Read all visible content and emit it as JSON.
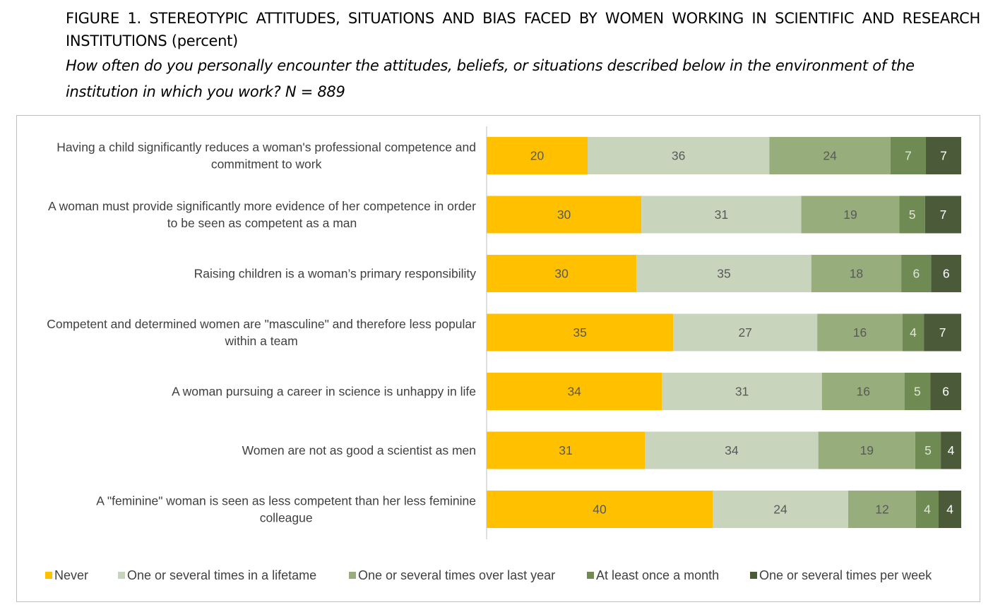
{
  "figure": {
    "title": "FIGURE 1. STEREOTYPIC ATTITUDES, SITUATIONS AND BIAS FACED BY WOMEN WORKING IN SCIENTIFIC AND RESEARCH INSTITUTIONS (percent)",
    "subtitle": "How often do you personally encounter the attitudes, beliefs, or situations described below in the environment of the institution in which you work? N = 889"
  },
  "chart_data": {
    "type": "bar",
    "orientation": "horizontal",
    "stacked": true,
    "categories": [
      [
        "Having a child significantly reduces a woman's professional competence and",
        "commitment to work"
      ],
      [
        "A woman must provide significantly more evidence of her competence in order",
        "to be seen as competent as a man"
      ],
      [
        "Raising children is a woman’s primary responsibility"
      ],
      [
        "Competent and determined women are \"masculine\" and therefore less popular",
        "within a team"
      ],
      [
        "A woman pursuing a career in science is unhappy in life"
      ],
      [
        "Women are not as good a scientist as men"
      ],
      [
        "A \"feminine\" woman is seen as less competent than her less feminine",
        "colleague"
      ]
    ],
    "series": [
      {
        "name": "Never",
        "color": "#FFC000",
        "label_color": "#595959",
        "values": [
          20,
          30,
          30,
          35,
          34,
          31,
          40
        ]
      },
      {
        "name": "One or several times in a lifetame",
        "color": "#C9D4BC",
        "label_color": "#595959",
        "values": [
          36,
          31,
          35,
          27,
          31,
          34,
          24
        ]
      },
      {
        "name": "One or several times over last year",
        "color": "#98AD7C",
        "label_color": "#595959",
        "values": [
          24,
          19,
          18,
          16,
          16,
          19,
          12
        ]
      },
      {
        "name": "At least once a month",
        "color": "#6F8A52",
        "label_color": "#E0E6D6",
        "values": [
          7,
          5,
          6,
          4,
          5,
          5,
          4
        ]
      },
      {
        "name": "One or several times per week",
        "color": "#4B5A38",
        "label_color": "#FFFFFF",
        "values": [
          7,
          7,
          6,
          7,
          6,
          4,
          4
        ]
      }
    ],
    "legend_position": "bottom",
    "grid": false
  }
}
